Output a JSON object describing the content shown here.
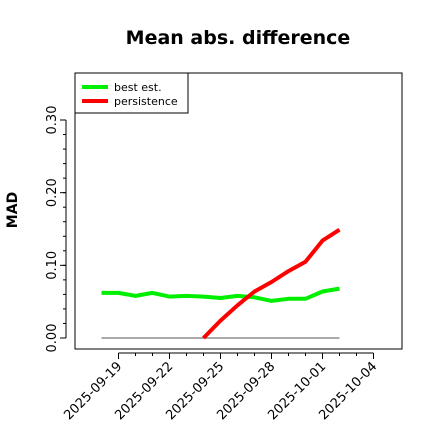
{
  "chart_data": {
    "type": "line",
    "title": "Mean abs. difference",
    "xlabel": "",
    "ylabel": "MAD",
    "x_ticks": [
      "2025-09-19",
      "2025-09-22",
      "2025-09-25",
      "2025-09-28",
      "2025-10-01",
      "2025-10-04"
    ],
    "y_ticks": [
      "0.00",
      "0.10",
      "0.20",
      "0.30"
    ],
    "ylim": [
      -0.01,
      0.37
    ],
    "xlim": [
      "2025-09-16",
      "2025-10-05"
    ],
    "grid": false,
    "legend_position": "top-left",
    "reference_line": {
      "y": 0.0,
      "x_from": "2025-09-18",
      "x_to": "2025-10-02",
      "color": "#555555"
    },
    "series": [
      {
        "name": "best est.",
        "color": "#00ee00",
        "points": [
          [
            "2025-09-18",
            0.062
          ],
          [
            "2025-09-19",
            0.062
          ],
          [
            "2025-09-20",
            0.058
          ],
          [
            "2025-09-21",
            0.062
          ],
          [
            "2025-09-22",
            0.057
          ],
          [
            "2025-09-23",
            0.058
          ],
          [
            "2025-09-24",
            0.057
          ],
          [
            "2025-09-25",
            0.055
          ],
          [
            "2025-09-26",
            0.058
          ],
          [
            "2025-09-27",
            0.056
          ],
          [
            "2025-09-28",
            0.051
          ],
          [
            "2025-09-29",
            0.054
          ],
          [
            "2025-09-30",
            0.054
          ],
          [
            "2025-10-01",
            0.064
          ],
          [
            "2025-10-02",
            0.068
          ]
        ]
      },
      {
        "name": "persistence",
        "color": "#ff0000",
        "points": [
          [
            "2025-09-24",
            0.0
          ],
          [
            "2025-09-25",
            0.024
          ],
          [
            "2025-09-26",
            0.045
          ],
          [
            "2025-09-27",
            0.064
          ],
          [
            "2025-09-28",
            0.077
          ],
          [
            "2025-09-29",
            0.092
          ],
          [
            "2025-09-30",
            0.105
          ],
          [
            "2025-10-01",
            0.134
          ],
          [
            "2025-10-02",
            0.149
          ]
        ]
      }
    ]
  }
}
